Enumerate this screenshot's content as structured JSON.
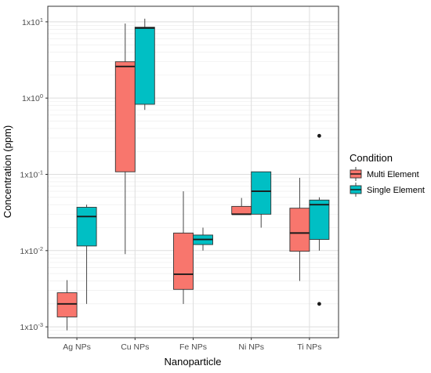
{
  "chart_data": {
    "type": "boxplot",
    "xlabel": "Nanoparticle",
    "ylabel": "Concentration (ppm)",
    "y_scale": "log10",
    "ylim": [
      0.00072,
      16
    ],
    "y_ticks": [
      {
        "value": 0.001,
        "base": "1x10",
        "exp": "-3"
      },
      {
        "value": 0.01,
        "base": "1x10",
        "exp": "-2"
      },
      {
        "value": 0.1,
        "base": "1x10",
        "exp": "-1"
      },
      {
        "value": 1,
        "base": "1x10",
        "exp": "0"
      },
      {
        "value": 10,
        "base": "1x10",
        "exp": "1"
      }
    ],
    "grid": true,
    "legend": {
      "title": "Condition",
      "placement": "right",
      "entries": [
        "Multi Element",
        "Single Element"
      ]
    },
    "categories": [
      "Ag NPs",
      "Cu NPs",
      "Fe NPs",
      "Ni NPs",
      "Ti NPs"
    ],
    "series": [
      {
        "name": "Multi Element",
        "color": "#F8766D",
        "boxes": [
          {
            "category": "Ag NPs",
            "min": 0.0009,
            "q1": 0.00135,
            "median": 0.002,
            "q3": 0.0028,
            "max": 0.0041,
            "outliers": []
          },
          {
            "category": "Cu NPs",
            "min": 0.009,
            "q1": 0.108,
            "median": 2.6,
            "q3": 3.0,
            "max": 9.5,
            "outliers": []
          },
          {
            "category": "Fe NPs",
            "min": 0.002,
            "q1": 0.0031,
            "median": 0.0049,
            "q3": 0.017,
            "max": 0.06,
            "outliers": []
          },
          {
            "category": "Ni NPs",
            "min": 0.03,
            "q1": 0.03,
            "median": 0.03,
            "q3": 0.038,
            "max": 0.049,
            "outliers": []
          },
          {
            "category": "Ti NPs",
            "min": 0.004,
            "q1": 0.0098,
            "median": 0.017,
            "q3": 0.036,
            "max": 0.09,
            "outliers": []
          }
        ]
      },
      {
        "name": "Single Element",
        "color": "#00BFC4",
        "boxes": [
          {
            "category": "Ag NPs",
            "min": 0.002,
            "q1": 0.0115,
            "median": 0.028,
            "q3": 0.037,
            "max": 0.04,
            "outliers": []
          },
          {
            "category": "Cu NPs",
            "min": 0.7,
            "q1": 0.83,
            "median": 8.3,
            "q3": 8.5,
            "max": 11,
            "outliers": []
          },
          {
            "category": "Fe NPs",
            "min": 0.01,
            "q1": 0.012,
            "median": 0.014,
            "q3": 0.016,
            "max": 0.02,
            "outliers": []
          },
          {
            "category": "Ni NPs",
            "min": 0.02,
            "q1": 0.03,
            "median": 0.06,
            "q3": 0.108,
            "max": 0.108,
            "outliers": []
          },
          {
            "category": "Ti NPs",
            "min": 0.01,
            "q1": 0.014,
            "median": 0.04,
            "q3": 0.046,
            "max": 0.05,
            "outliers": [
              0.32,
              0.002
            ]
          }
        ]
      }
    ]
  }
}
